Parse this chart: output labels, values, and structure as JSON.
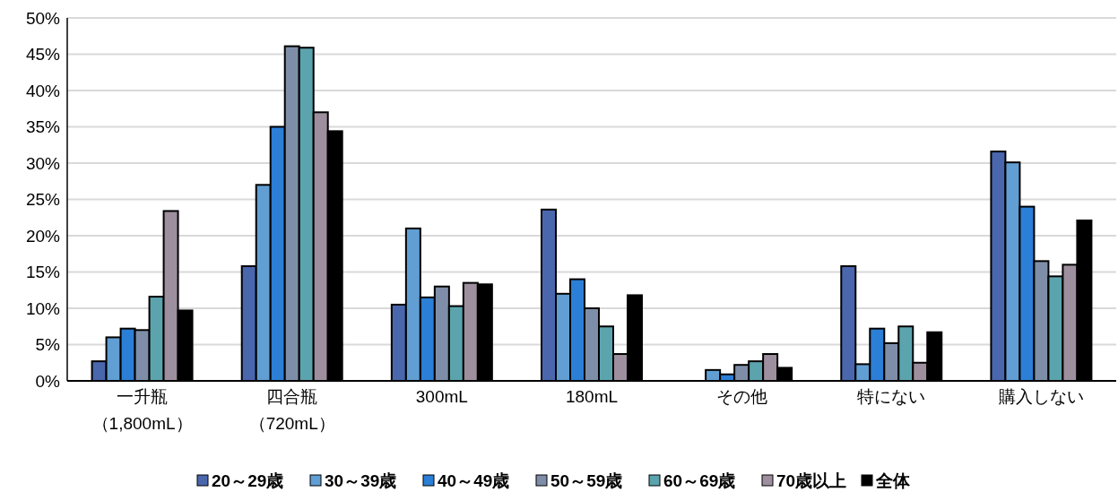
{
  "chart_data": {
    "type": "bar",
    "categories": [
      "一升瓶（1,800mL）",
      "四合瓶（720mL）",
      "300mL",
      "180mL",
      "その他",
      "特にない",
      "購入しない"
    ],
    "series": [
      {
        "name": "20～29歳",
        "color": "#4a67ae",
        "values": [
          2.7,
          15.8,
          10.5,
          23.6,
          0,
          15.8,
          31.6
        ]
      },
      {
        "name": "30～39歳",
        "color": "#619ed3",
        "values": [
          6.0,
          27.0,
          21.0,
          12.0,
          1.5,
          2.3,
          30.1
        ]
      },
      {
        "name": "40～49歳",
        "color": "#2b7fd6",
        "values": [
          7.2,
          35.0,
          11.5,
          14.0,
          0.9,
          7.2,
          24.0
        ]
      },
      {
        "name": "50～59歳",
        "color": "#7f8ea8",
        "values": [
          7.0,
          46.1,
          13.0,
          10.0,
          2.2,
          5.2,
          16.5
        ]
      },
      {
        "name": "60～69歳",
        "color": "#5ba4ae",
        "values": [
          11.6,
          45.9,
          10.3,
          7.5,
          2.7,
          7.5,
          14.4
        ]
      },
      {
        "name": "70歳以上",
        "color": "#9e8f9e",
        "values": [
          23.4,
          37.0,
          13.5,
          3.7,
          3.7,
          2.5,
          16.0
        ]
      },
      {
        "name": "全体",
        "color": "#000000",
        "values": [
          9.7,
          34.4,
          13.3,
          11.8,
          1.8,
          6.7,
          22.1
        ]
      }
    ],
    "ylim": [
      0,
      50
    ],
    "yticks": [
      {
        "value": 0,
        "label": "0%"
      },
      {
        "value": 5,
        "label": "5%"
      },
      {
        "value": 10,
        "label": "10%"
      },
      {
        "value": 15,
        "label": "15%"
      },
      {
        "value": 20,
        "label": "20%"
      },
      {
        "value": 25,
        "label": "25%"
      },
      {
        "value": 30,
        "label": "30%"
      },
      {
        "value": 35,
        "label": "35%"
      },
      {
        "value": 40,
        "label": "40%"
      },
      {
        "value": 45,
        "label": "45%"
      },
      {
        "value": 50,
        "label": "50%"
      }
    ],
    "grid": "y",
    "legend": "bottom"
  }
}
